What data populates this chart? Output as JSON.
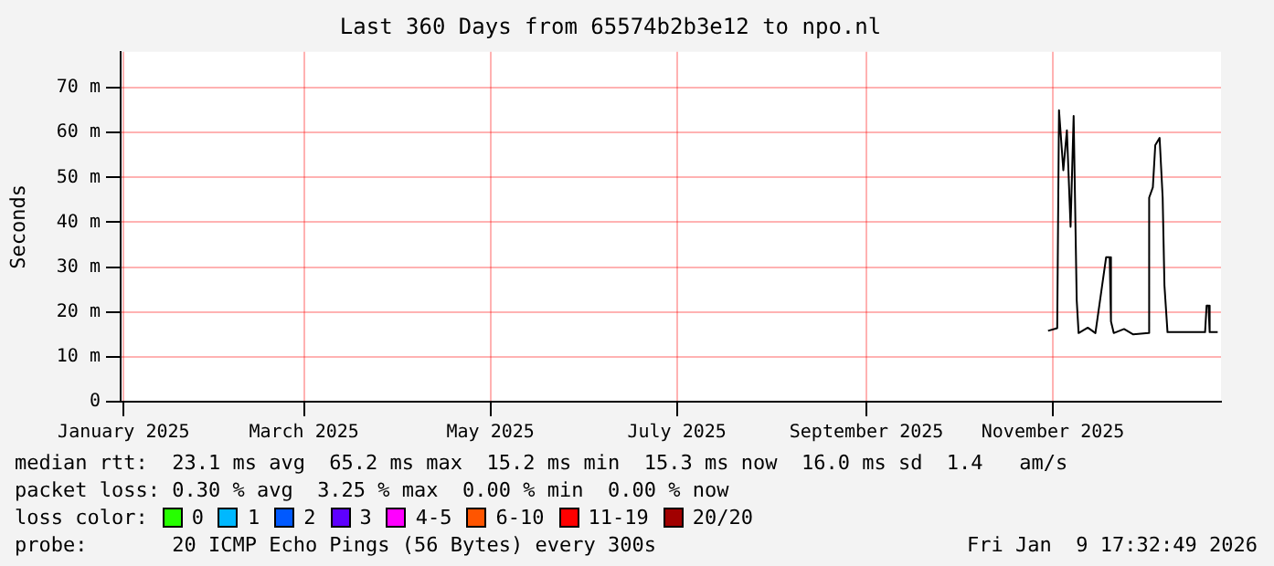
{
  "chart_data": {
    "type": "line",
    "title": "Last 360 Days from 65574b2b3e12 to npo.nl",
    "ylabel": "Seconds",
    "x": [
      "2025-11-13T10:00",
      "2025-11-16T10:00",
      "2025-11-17T00:00",
      "2025-11-18T10:00",
      "2025-11-19T14:00",
      "2025-11-20T19:00",
      "2025-11-21T19:00",
      "2025-11-22T19:00",
      "2025-11-23T10:00",
      "2025-11-26T10:00",
      "2025-11-28T22:00",
      "2025-12-02T10:00",
      "2025-12-03T14:00",
      "2025-12-04T00:00",
      "2025-12-04T22:00",
      "2025-12-08T07:00",
      "2025-12-11T07:00",
      "2025-12-16T07:00",
      "2025-12-16T12:00",
      "2025-12-17T17:00",
      "2025-12-18T12:00",
      "2025-12-19T22:00",
      "2025-12-20T22:00",
      "2025-12-21T12:00",
      "2025-12-22T12:00",
      "2026-01-03T19:00",
      "2026-01-04T07:00",
      "2026-01-04T22:00",
      "2026-01-05T07:00",
      "2026-01-07T22:00"
    ],
    "series": [
      {
        "color": "#000000",
        "values": [
          15.8,
          16.4,
          65.0,
          51.6,
          60.5,
          39.0,
          63.7,
          22.7,
          15.3,
          16.5,
          15.3,
          32.2,
          32.2,
          17.9,
          15.3,
          16.2,
          15.0,
          15.3,
          45.5,
          47.8,
          57.2,
          58.8,
          45.5,
          25.9,
          15.5,
          15.5,
          21.4,
          21.4,
          15.5,
          15.5
        ]
      }
    ],
    "xlim": [
      "2025-01-14",
      "2026-01-09"
    ],
    "xticks": [
      {
        "value": "2025-01-15",
        "label": "January 2025"
      },
      {
        "value": "2025-03-15",
        "label": "March 2025"
      },
      {
        "value": "2025-05-15",
        "label": "May 2025"
      },
      {
        "value": "2025-07-15",
        "label": "July 2025"
      },
      {
        "value": "2025-09-15",
        "label": "September 2025"
      },
      {
        "value": "2025-11-15",
        "label": "November 2025"
      }
    ],
    "ylim": [
      0,
      78
    ],
    "yticks": [
      0,
      {
        "value": 10,
        "label": "10 m"
      },
      {
        "value": 20,
        "label": "20 m"
      },
      {
        "value": 30,
        "label": "30 m"
      },
      {
        "value": 40,
        "label": "40 m"
      },
      {
        "value": 50,
        "label": "50 m"
      },
      {
        "value": 60,
        "label": "60 m"
      },
      {
        "value": 70,
        "label": "70 m"
      }
    ],
    "grid": true,
    "legend": false,
    "marker": "none",
    "line_style": "solid",
    "annotations": [
      "median rtt:  23.1 ms avg  65.2 ms max  15.2 ms min  15.3 ms now  16.0 ms sd  1.4   am/s",
      "packet loss: 0.30 % avg  3.25 % max  0.00 % min  0.00 % now",
      "loss color:",
      "0",
      "1",
      "2",
      "3",
      "4-5",
      "6-10",
      "11-19",
      "20/20",
      "probe:       20 ICMP Echo Pings (56 Bytes) every 300s",
      "Fri Jan  9 17:32:49 2026"
    ]
  }
}
